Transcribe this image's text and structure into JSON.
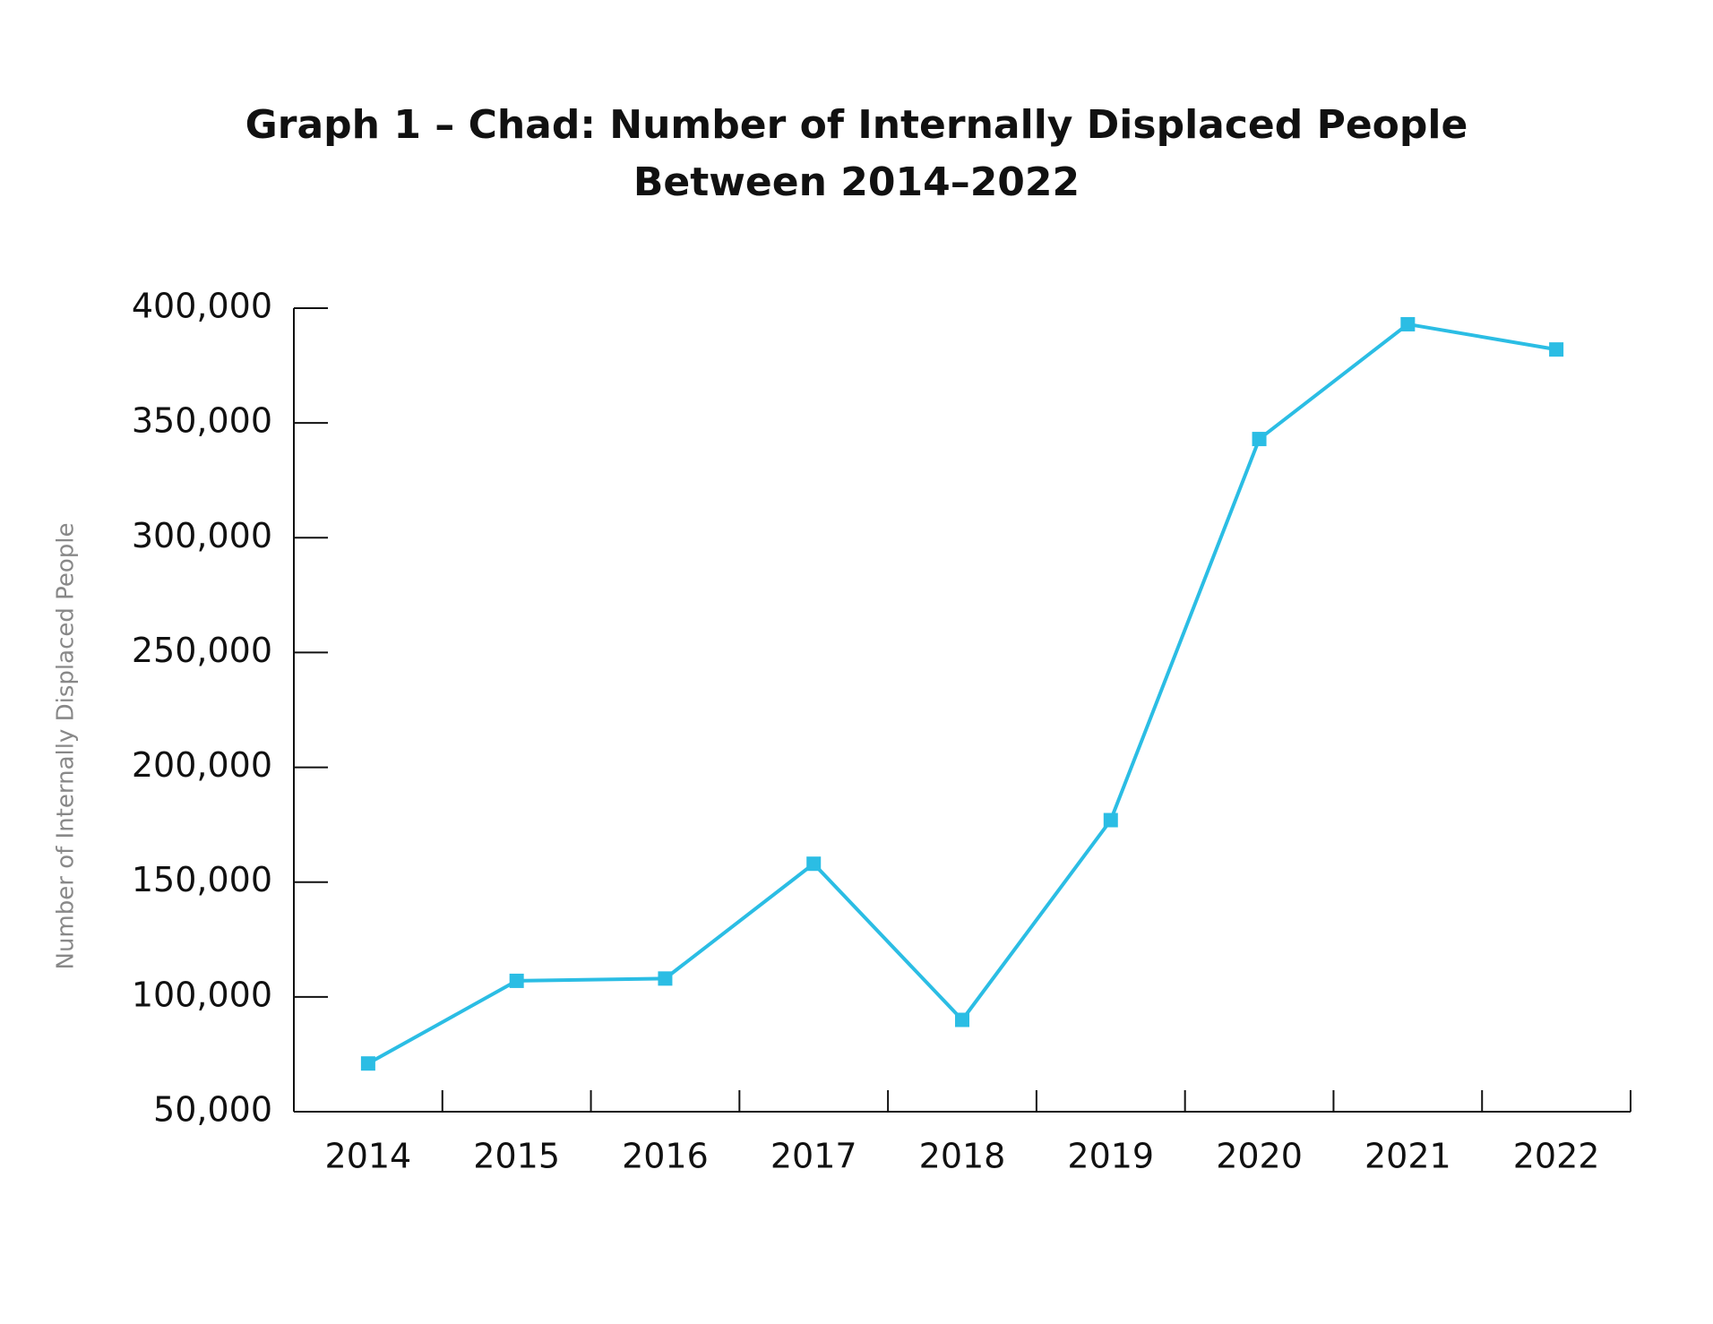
{
  "chart_data": {
    "type": "line",
    "title": "Graph 1 – Chad: Number of Internally Displaced People Between 2014–2022",
    "y_label": "Number of Internally Displaced People",
    "categories": [
      "2014",
      "2015",
      "2016",
      "2017",
      "2018",
      "2019",
      "2020",
      "2021",
      "2022"
    ],
    "series": [
      {
        "color": "#2bbde4",
        "values": [
          71000,
          107000,
          108000,
          158000,
          90000,
          177000,
          343000,
          393000,
          382000
        ]
      }
    ],
    "ylim": [
      50000,
      400000
    ],
    "yticks": [
      {
        "value": 50000,
        "label": "50,000"
      },
      {
        "value": 100000,
        "label": "100,000"
      },
      {
        "value": 150000,
        "label": "150,000"
      },
      {
        "value": 200000,
        "label": "200,000"
      },
      {
        "value": 250000,
        "label": "250,000"
      },
      {
        "value": 300000,
        "label": "300,000"
      },
      {
        "value": 350000,
        "label": "350,000"
      },
      {
        "value": 400000,
        "label": "400,000"
      }
    ],
    "grid": false
  }
}
